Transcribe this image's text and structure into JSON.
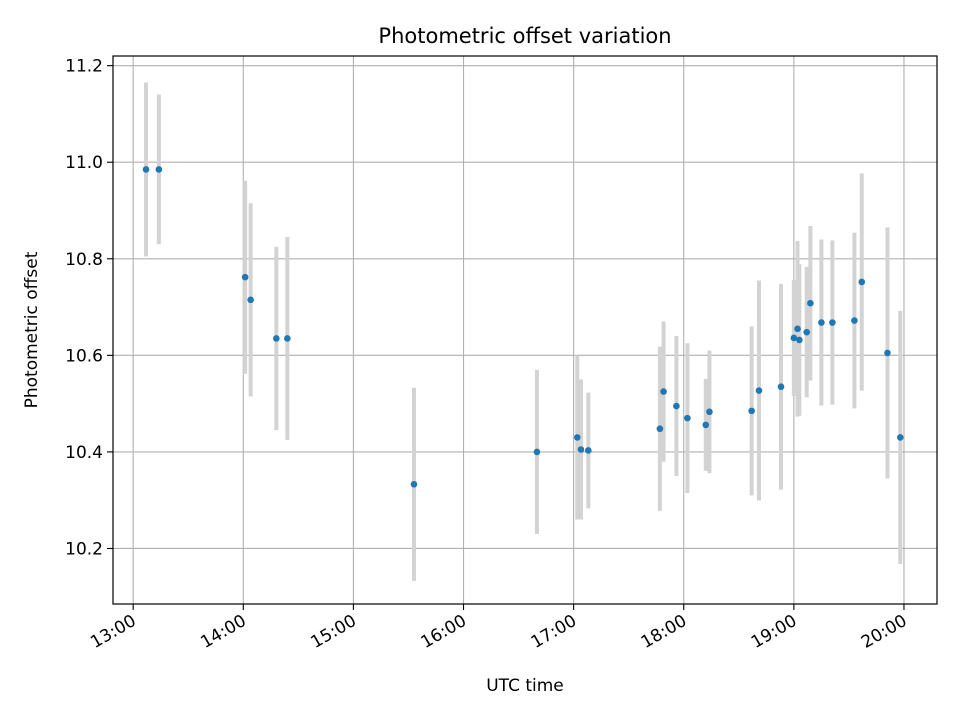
{
  "chart_data": {
    "type": "scatter",
    "title": "Photometric offset variation",
    "xlabel": "UTC time",
    "ylabel": "Photometric offset",
    "x_axis_kind": "time",
    "xlim": [
      "12:49",
      "20:18"
    ],
    "ylim": [
      10.085,
      11.22
    ],
    "x_ticks": [
      "13:00",
      "14:00",
      "15:00",
      "16:00",
      "17:00",
      "18:00",
      "19:00",
      "20:00"
    ],
    "y_ticks": [
      10.2,
      10.4,
      10.6,
      10.8,
      11.0,
      11.2
    ],
    "y_tick_labels": [
      "10.2",
      "10.4",
      "10.6",
      "10.8",
      "11.0",
      "11.2"
    ],
    "grid": true,
    "marker_color": "#1f77b4",
    "errorbar_color": "#d3d3d3",
    "points": [
      {
        "x": "13:07",
        "y": 10.985,
        "yerr": 0.18
      },
      {
        "x": "13:14",
        "y": 10.985,
        "yerr": 0.155
      },
      {
        "x": "14:01",
        "y": 10.762,
        "yerr": 0.2
      },
      {
        "x": "14:04",
        "y": 10.715,
        "yerr": 0.2
      },
      {
        "x": "14:18",
        "y": 10.635,
        "yerr": 0.19
      },
      {
        "x": "14:24",
        "y": 10.635,
        "yerr": 0.21
      },
      {
        "x": "15:33",
        "y": 10.333,
        "yerr": 0.2
      },
      {
        "x": "16:40",
        "y": 10.4,
        "yerr": 0.17
      },
      {
        "x": "17:02",
        "y": 10.43,
        "yerr": 0.17
      },
      {
        "x": "17:04",
        "y": 10.405,
        "yerr": 0.145
      },
      {
        "x": "17:08",
        "y": 10.403,
        "yerr": 0.12
      },
      {
        "x": "17:47",
        "y": 10.448,
        "yerr": 0.17
      },
      {
        "x": "17:49",
        "y": 10.525,
        "yerr": 0.145
      },
      {
        "x": "17:56",
        "y": 10.495,
        "yerr": 0.145
      },
      {
        "x": "18:02",
        "y": 10.47,
        "yerr": 0.155
      },
      {
        "x": "18:12",
        "y": 10.456,
        "yerr": 0.095
      },
      {
        "x": "18:14",
        "y": 10.483,
        "yerr": 0.127
      },
      {
        "x": "18:37",
        "y": 10.485,
        "yerr": 0.175
      },
      {
        "x": "18:41",
        "y": 10.527,
        "yerr": 0.228
      },
      {
        "x": "18:53",
        "y": 10.535,
        "yerr": 0.213
      },
      {
        "x": "19:00",
        "y": 10.636,
        "yerr": 0.12
      },
      {
        "x": "19:02",
        "y": 10.655,
        "yerr": 0.182
      },
      {
        "x": "19:03",
        "y": 10.632,
        "yerr": 0.157
      },
      {
        "x": "19:07",
        "y": 10.648,
        "yerr": 0.135
      },
      {
        "x": "19:09",
        "y": 10.708,
        "yerr": 0.16
      },
      {
        "x": "19:15",
        "y": 10.668,
        "yerr": 0.172
      },
      {
        "x": "19:21",
        "y": 10.668,
        "yerr": 0.17
      },
      {
        "x": "19:33",
        "y": 10.672,
        "yerr": 0.182
      },
      {
        "x": "19:37",
        "y": 10.752,
        "yerr": 0.225
      },
      {
        "x": "19:51",
        "y": 10.605,
        "yerr": 0.26
      },
      {
        "x": "19:58",
        "y": 10.43,
        "yerr": 0.262
      }
    ]
  }
}
